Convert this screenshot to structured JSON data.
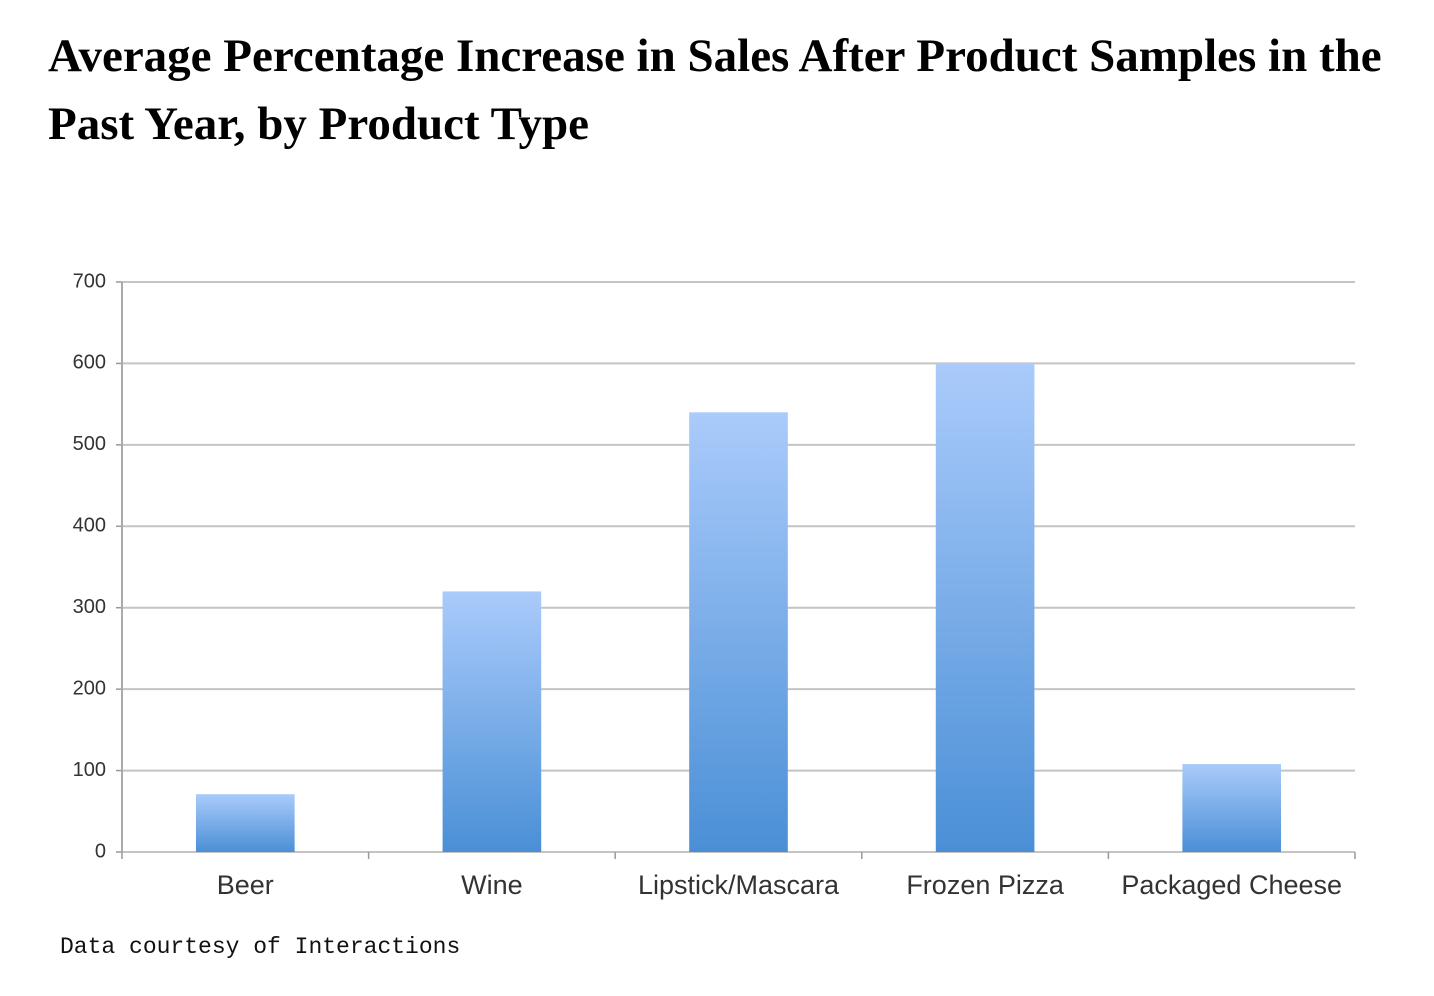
{
  "chart_data": {
    "type": "bar",
    "title": "Average Percentage Increase in Sales After Product Samples in the Past Year, by Product Type",
    "categories": [
      "Beer",
      "Wine",
      "Lipstick/Mascara",
      "Frozen Pizza",
      "Packaged Cheese"
    ],
    "values": [
      71,
      320,
      540,
      600,
      108
    ],
    "color": [
      "#aacbfb",
      "#4a8fd6"
    ],
    "ylim": [
      0,
      700
    ],
    "yticks": [
      0,
      100,
      200,
      300,
      400,
      500,
      600,
      700
    ],
    "grid": true,
    "source": "Data courtesy of Interactions"
  }
}
